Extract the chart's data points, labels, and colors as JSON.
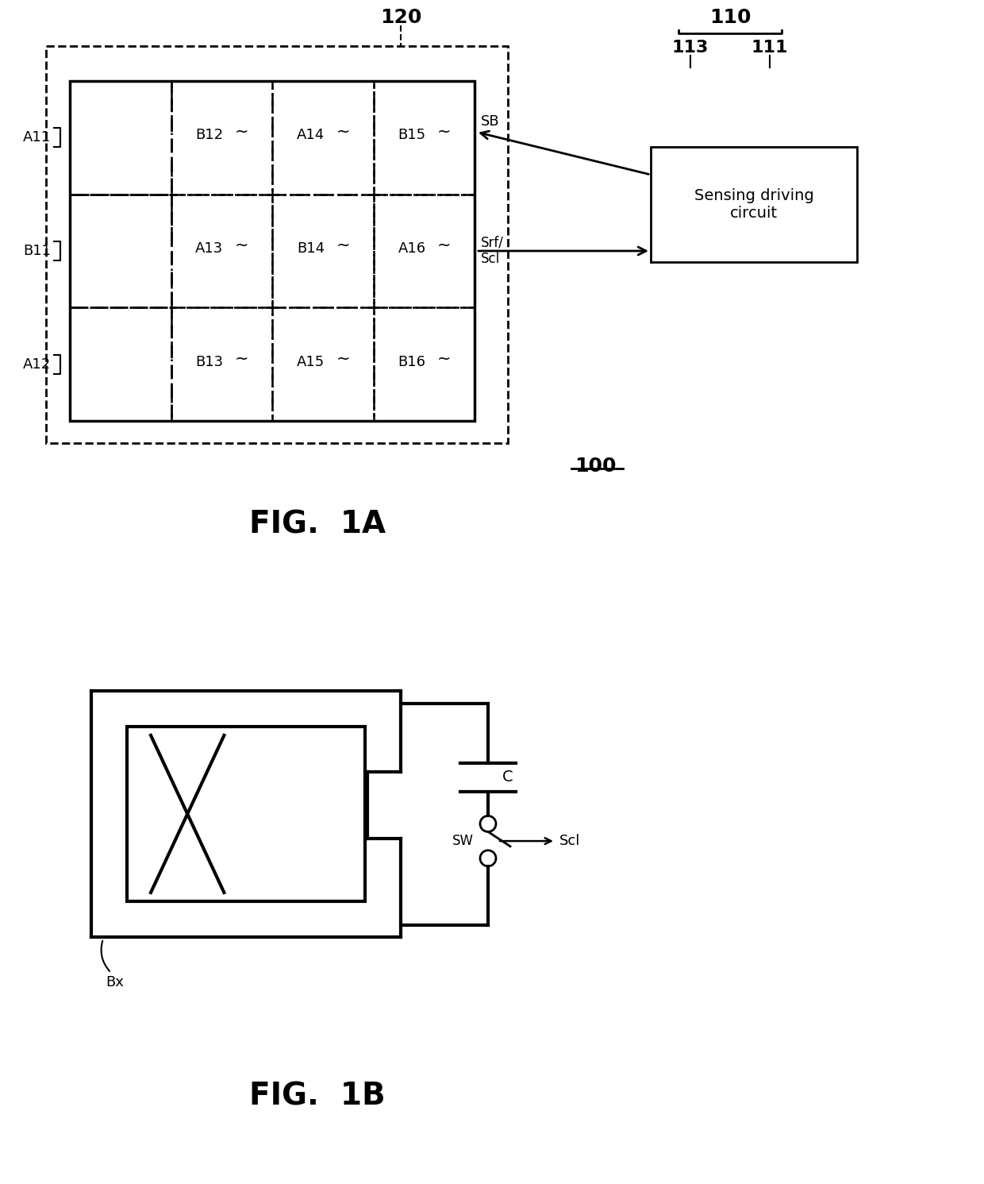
{
  "fig_width": 12.4,
  "fig_height": 14.91,
  "bg_color": "#ffffff",
  "line_color": "#000000",
  "fig1a_title": "FIG.  1A",
  "fig1b_title": "FIG.  1B",
  "ref_100": "100",
  "ref_120": "120",
  "ref_110": "110",
  "ref_113": "113",
  "ref_111": "111",
  "sb_label": "SB",
  "srf_scl_label": "Srf/\nScl",
  "sensing_text": "Sensing driving\ncircuit",
  "cell_labels": [
    [
      "",
      "B12",
      "A14",
      "B15"
    ],
    [
      "",
      "A13",
      "B14",
      "A16"
    ],
    [
      "",
      "B13",
      "A15",
      "B16"
    ]
  ],
  "left_labels": [
    "A11",
    "B11",
    "A12"
  ],
  "bx_label": "Bx",
  "c_label": "C",
  "sw_label": "SW",
  "scl_label": "Scl"
}
